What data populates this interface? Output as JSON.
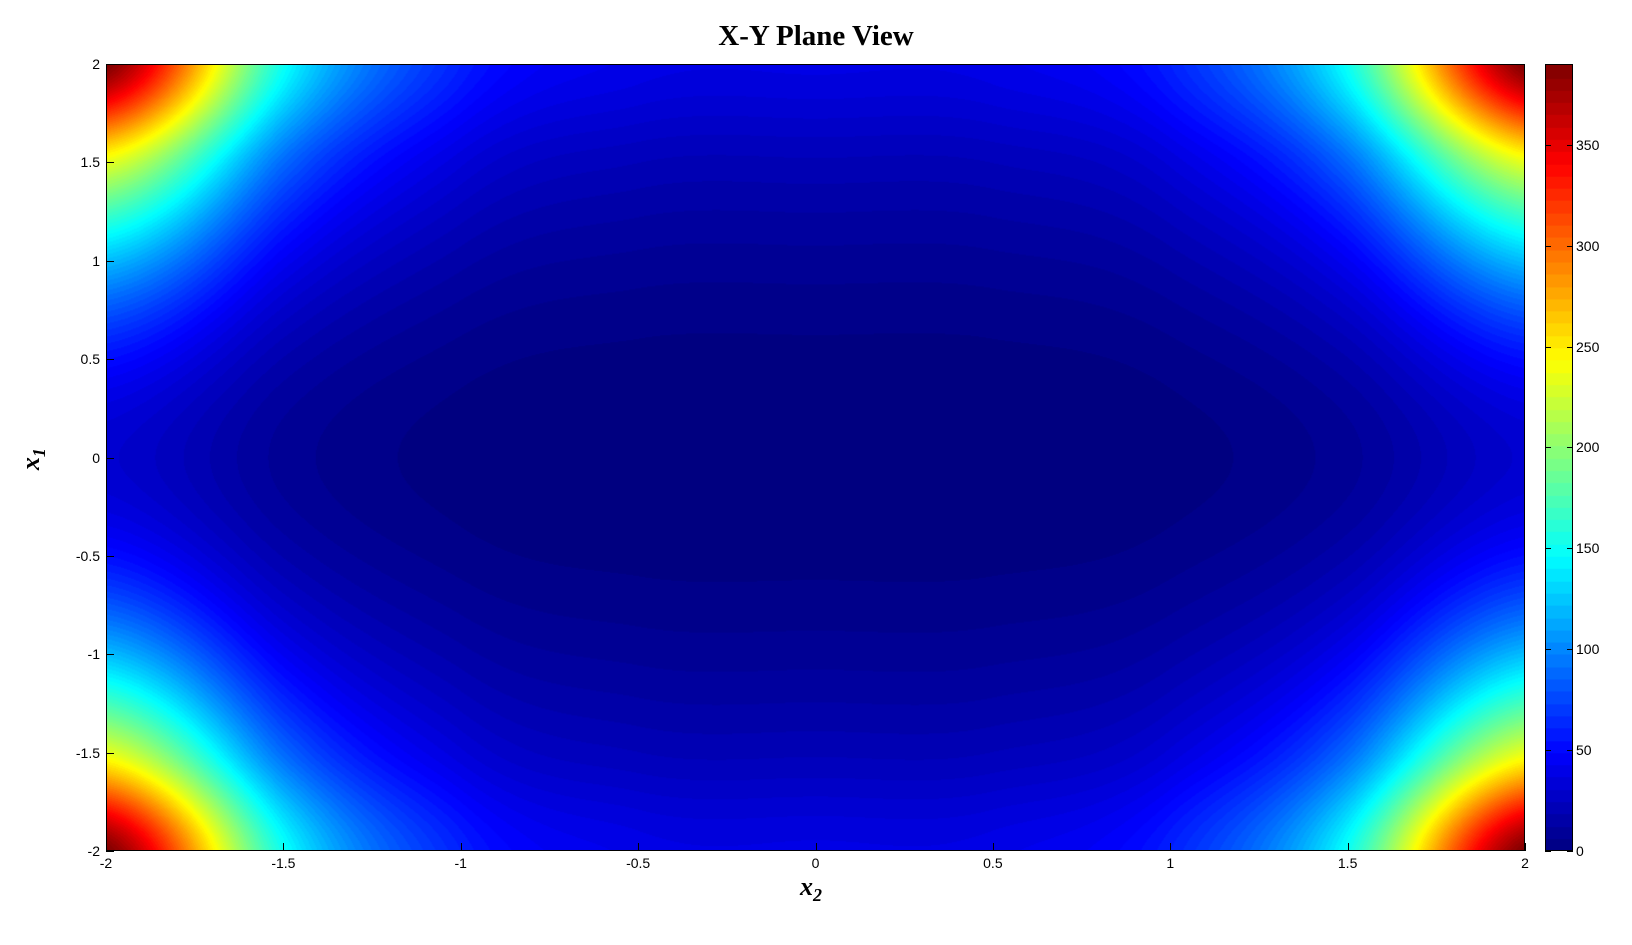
{
  "chart_data": {
    "type": "heatmap",
    "title": "X-Y Plane View",
    "xlabel": "x",
    "xlabel_sub": "2",
    "ylabel": "x",
    "ylabel_sub": "1",
    "xlim": [
      -2,
      2
    ],
    "ylim": [
      -2,
      2
    ],
    "xticks": [
      "-2",
      "-1.5",
      "-1",
      "-0.5",
      "0",
      "0.5",
      "1",
      "1.5",
      "2"
    ],
    "yticks": [
      "2",
      "1.5",
      "1",
      "0.5",
      "0",
      "-0.5",
      "-1",
      "-1.5",
      "-2"
    ],
    "colormap": "jet",
    "clim": [
      0,
      390
    ],
    "colorbar_ticks": [
      "0",
      "50",
      "100",
      "150",
      "200",
      "250",
      "300",
      "350"
    ],
    "grid": false,
    "grid_x2": [
      -2,
      -1.5,
      -1,
      -0.5,
      0,
      0.5,
      1,
      1.5,
      2
    ],
    "grid_x1": [
      -2,
      -1.5,
      -1,
      -0.5,
      0,
      0.5,
      1,
      1.5,
      2
    ],
    "z_rows_x1_ascending": [
      [
        392,
        151.4,
        62,
        41.4,
        40,
        41.4,
        62,
        151.4,
        392
      ],
      [
        234.5,
        89.6,
        35.75,
        23.3,
        22.5,
        23.3,
        35.75,
        89.6,
        234.5
      ],
      [
        122,
        45.4,
        17,
        10.44,
        10,
        10.44,
        17,
        45.4,
        122
      ],
      [
        54.5,
        18.95,
        5.75,
        2.7,
        2.5,
        2.7,
        5.75,
        18.95,
        54.5
      ],
      [
        32,
        10.125,
        2,
        0.125,
        0,
        0.125,
        2,
        10.125,
        32
      ],
      [
        54.5,
        18.95,
        5.75,
        2.7,
        2.5,
        2.7,
        5.75,
        18.95,
        54.5
      ],
      [
        122,
        45.4,
        17,
        10.44,
        10,
        10.44,
        17,
        45.4,
        122
      ],
      [
        234.5,
        89.6,
        35.75,
        23.3,
        22.5,
        23.3,
        35.75,
        89.6,
        234.5
      ],
      [
        392,
        151.4,
        62,
        41.4,
        40,
        41.4,
        62,
        151.4,
        392
      ]
    ]
  }
}
